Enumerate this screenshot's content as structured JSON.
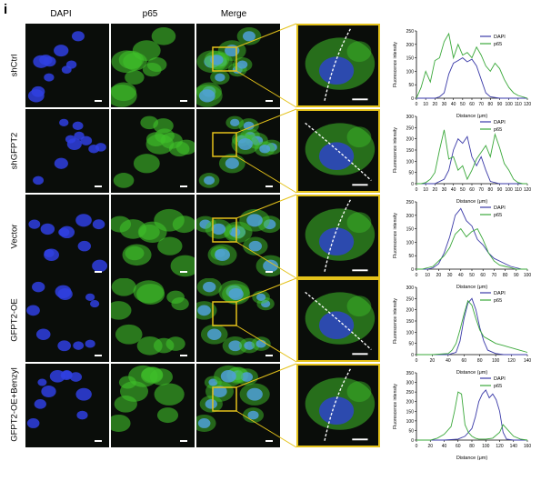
{
  "figure": {
    "panel_letter": "i",
    "columns": [
      "DAPI",
      "p65",
      "Merge"
    ],
    "rows": [
      "shCtrl",
      "shGFPT2",
      "Vector",
      "GFPT2-OE",
      "GFPT2-OE+Benzyl"
    ],
    "colors": {
      "dapi": "#2f3fe0",
      "p65": "#3fbf2a",
      "box": "#e4c21a",
      "scale_bar": "#ffffff"
    }
  },
  "chart_data": [
    {
      "type": "line",
      "ylabel": "Fluorescence intensity",
      "xlabel": "Distance (μm)",
      "xlim": [
        0,
        120
      ],
      "xticks": [
        0,
        10,
        20,
        30,
        40,
        50,
        60,
        70,
        80,
        90,
        100,
        110,
        120
      ],
      "ylim": [
        0,
        250
      ],
      "yticks": [
        0,
        50,
        100,
        150,
        200,
        250
      ],
      "series": [
        {
          "name": "DAPI",
          "color": "#3a3aa8",
          "x": [
            0,
            10,
            20,
            25,
            30,
            35,
            40,
            45,
            50,
            55,
            60,
            65,
            70,
            75,
            80,
            90,
            100,
            110,
            120
          ],
          "y": [
            0,
            0,
            0,
            5,
            20,
            90,
            130,
            140,
            150,
            135,
            145,
            120,
            70,
            20,
            5,
            0,
            0,
            0,
            0
          ]
        },
        {
          "name": "p65",
          "color": "#3aa83a",
          "x": [
            0,
            5,
            10,
            15,
            20,
            25,
            30,
            35,
            40,
            45,
            50,
            55,
            60,
            65,
            70,
            75,
            80,
            85,
            90,
            95,
            100,
            105,
            110,
            115,
            120
          ],
          "y": [
            0,
            40,
            100,
            60,
            140,
            150,
            210,
            240,
            150,
            200,
            160,
            170,
            150,
            190,
            160,
            120,
            100,
            130,
            110,
            70,
            40,
            20,
            10,
            5,
            0
          ]
        }
      ]
    },
    {
      "type": "line",
      "ylabel": "Fluorescence intensity",
      "xlabel": "Distance (μm)",
      "xlim": [
        0,
        120
      ],
      "xticks": [
        0,
        10,
        20,
        30,
        40,
        50,
        60,
        70,
        80,
        90,
        100,
        110,
        120
      ],
      "ylim": [
        0,
        300
      ],
      "yticks": [
        0,
        50,
        100,
        150,
        200,
        250,
        300
      ],
      "series": [
        {
          "name": "DAPI",
          "color": "#3a3aa8",
          "x": [
            0,
            10,
            20,
            30,
            35,
            40,
            45,
            50,
            55,
            60,
            65,
            70,
            75,
            80,
            90,
            100,
            110,
            120
          ],
          "y": [
            0,
            0,
            0,
            20,
            60,
            150,
            200,
            180,
            210,
            120,
            80,
            120,
            60,
            10,
            0,
            0,
            0,
            0
          ]
        },
        {
          "name": "p65",
          "color": "#3aa83a",
          "x": [
            0,
            5,
            10,
            15,
            20,
            25,
            30,
            35,
            40,
            45,
            50,
            55,
            60,
            65,
            70,
            75,
            80,
            85,
            90,
            95,
            100,
            105,
            110,
            115,
            120
          ],
          "y": [
            0,
            0,
            5,
            20,
            50,
            150,
            240,
            110,
            120,
            60,
            80,
            20,
            60,
            110,
            140,
            170,
            120,
            220,
            160,
            90,
            60,
            20,
            5,
            0,
            0
          ]
        }
      ]
    },
    {
      "type": "line",
      "ylabel": "Fluorescence intensity",
      "xlabel": "Distance (μm)",
      "xlim": [
        0,
        100
      ],
      "xticks": [
        0,
        10,
        20,
        30,
        40,
        50,
        60,
        70,
        80,
        90,
        100
      ],
      "ylim": [
        0,
        250
      ],
      "yticks": [
        0,
        50,
        100,
        150,
        200,
        250
      ],
      "series": [
        {
          "name": "DAPI",
          "color": "#3a3aa8",
          "x": [
            0,
            5,
            10,
            15,
            20,
            25,
            30,
            35,
            40,
            45,
            50,
            55,
            60,
            65,
            70,
            75,
            80,
            85,
            90,
            95,
            100
          ],
          "y": [
            0,
            0,
            0,
            5,
            20,
            60,
            120,
            200,
            225,
            180,
            160,
            110,
            90,
            60,
            40,
            30,
            20,
            10,
            5,
            0,
            0
          ]
        },
        {
          "name": "p65",
          "color": "#3aa83a",
          "x": [
            0,
            5,
            10,
            15,
            20,
            25,
            30,
            35,
            40,
            45,
            50,
            55,
            60,
            65,
            70,
            75,
            80,
            85,
            90,
            95,
            100
          ],
          "y": [
            0,
            0,
            5,
            10,
            30,
            50,
            80,
            130,
            150,
            120,
            140,
            150,
            110,
            60,
            30,
            15,
            10,
            5,
            0,
            0,
            0
          ]
        }
      ]
    },
    {
      "type": "line",
      "ylabel": "Fluorescence intensity",
      "xlabel": "Distance (μm)",
      "xlim": [
        0,
        140
      ],
      "xticks": [
        0,
        20,
        40,
        60,
        80,
        100,
        120,
        140
      ],
      "ylim": [
        0,
        300
      ],
      "yticks": [
        0,
        50,
        100,
        150,
        200,
        250,
        300
      ],
      "series": [
        {
          "name": "DAPI",
          "color": "#3a3aa8",
          "x": [
            0,
            20,
            40,
            50,
            55,
            60,
            65,
            70,
            75,
            80,
            85,
            90,
            100,
            110,
            120,
            140
          ],
          "y": [
            0,
            0,
            0,
            10,
            60,
            160,
            230,
            250,
            200,
            120,
            60,
            20,
            5,
            0,
            0,
            0
          ]
        },
        {
          "name": "p65",
          "color": "#3aa83a",
          "x": [
            0,
            20,
            40,
            45,
            50,
            55,
            60,
            65,
            70,
            75,
            80,
            85,
            90,
            95,
            100,
            110,
            120,
            130,
            140
          ],
          "y": [
            0,
            0,
            5,
            20,
            50,
            110,
            180,
            240,
            220,
            160,
            110,
            80,
            70,
            60,
            50,
            40,
            30,
            20,
            10
          ]
        }
      ]
    },
    {
      "type": "line",
      "ylabel": "Fluorescence intensity",
      "xlabel": "Distance (μm)",
      "xlim": [
        0,
        160
      ],
      "xticks": [
        0,
        20,
        40,
        60,
        80,
        100,
        120,
        140,
        160
      ],
      "ylim": [
        0,
        350
      ],
      "yticks": [
        0,
        50,
        100,
        150,
        200,
        250,
        300,
        350
      ],
      "series": [
        {
          "name": "DAPI",
          "color": "#3a3aa8",
          "x": [
            0,
            20,
            40,
            60,
            70,
            80,
            85,
            90,
            95,
            100,
            105,
            110,
            115,
            120,
            125,
            130,
            140,
            160
          ],
          "y": [
            0,
            0,
            0,
            5,
            20,
            60,
            120,
            200,
            240,
            260,
            220,
            240,
            210,
            150,
            40,
            5,
            0,
            0
          ]
        },
        {
          "name": "p65",
          "color": "#3aa83a",
          "x": [
            0,
            20,
            30,
            40,
            50,
            55,
            60,
            65,
            70,
            75,
            80,
            85,
            90,
            100,
            110,
            120,
            125,
            130,
            140,
            150,
            160
          ],
          "y": [
            0,
            0,
            10,
            30,
            70,
            150,
            250,
            240,
            80,
            40,
            20,
            10,
            5,
            5,
            10,
            40,
            80,
            60,
            20,
            5,
            0
          ]
        }
      ]
    }
  ]
}
